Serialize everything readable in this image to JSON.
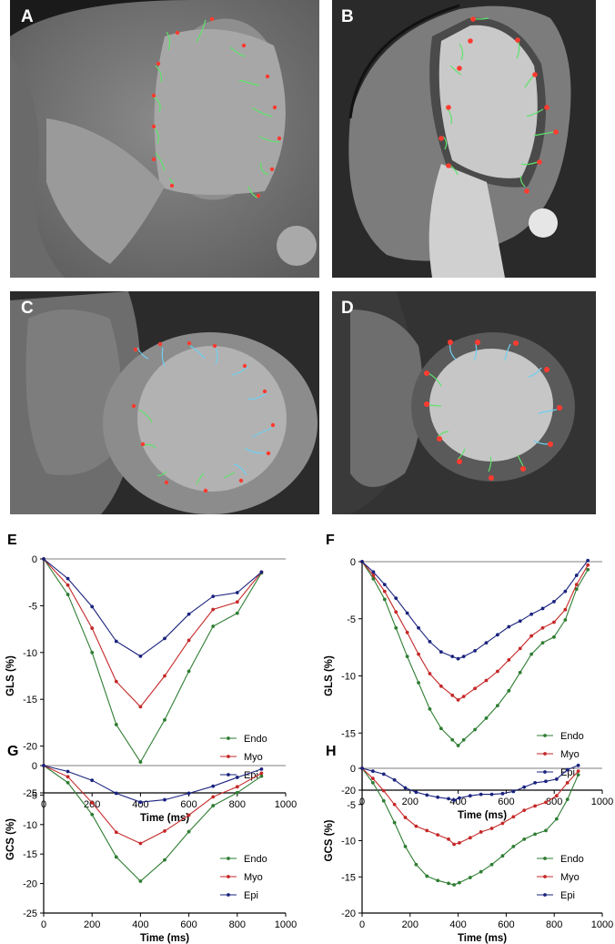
{
  "image_panels": [
    {
      "label": "A",
      "modality": "CT long-axis view"
    },
    {
      "label": "B",
      "modality": "CMR long-axis view"
    },
    {
      "label": "C",
      "modality": "CT short-axis view"
    },
    {
      "label": "D",
      "modality": "CMR short-axis view"
    }
  ],
  "colors": {
    "Endo": "#2e7d32",
    "Myo": "#c62828",
    "Epi": "#1a237e",
    "marker_red": "#ff3b30",
    "track_green": "#5ee36a",
    "track_cyan": "#6fd0f0"
  },
  "chart_data": [
    {
      "panel": "E",
      "type": "line",
      "xlabel": "Time (ms)",
      "ylabel": "GLS (%)",
      "xlim": [
        0,
        1000
      ],
      "ylim": [
        -25,
        0
      ],
      "xticks": [
        0,
        200,
        400,
        600,
        800,
        1000
      ],
      "yticks": [
        0,
        -5,
        -10,
        -15,
        -20,
        -25
      ],
      "legend": "bottom-right",
      "series": [
        {
          "name": "Endo",
          "x": [
            0,
            100,
            200,
            300,
            400,
            500,
            600,
            700,
            800,
            900
          ],
          "y": [
            0,
            -3.8,
            -10,
            -17.7,
            -21.7,
            -17.2,
            -12,
            -7.2,
            -5.8,
            -1.5
          ]
        },
        {
          "name": "Myo",
          "x": [
            0,
            100,
            200,
            300,
            400,
            500,
            600,
            700,
            800,
            900
          ],
          "y": [
            0,
            -2.8,
            -7.4,
            -13.1,
            -15.8,
            -12.5,
            -8.7,
            -5.4,
            -4.6,
            -1.4
          ]
        },
        {
          "name": "Epi",
          "x": [
            0,
            100,
            200,
            300,
            400,
            500,
            600,
            700,
            800,
            900
          ],
          "y": [
            0,
            -2.1,
            -5.1,
            -8.8,
            -10.4,
            -8.5,
            -5.9,
            -4,
            -3.6,
            -1.4
          ]
        }
      ]
    },
    {
      "panel": "F",
      "type": "line",
      "xlabel": "Time (ms)",
      "ylabel": "GLS (%)",
      "xlim": [
        0,
        1000
      ],
      "ylim": [
        -20,
        0
      ],
      "xticks": [
        0,
        200,
        400,
        600,
        800,
        1000
      ],
      "yticks": [
        0,
        -5,
        -10,
        -15,
        -20
      ],
      "legend": "bottom-right",
      "series": [
        {
          "name": "Endo",
          "x": [
            0,
            47,
            94,
            141,
            188,
            235,
            282,
            329,
            376,
            400,
            423,
            470,
            517,
            564,
            611,
            658,
            705,
            752,
            799,
            846,
            893,
            940
          ],
          "y": [
            0,
            -1.5,
            -3.3,
            -5.8,
            -8.3,
            -10.6,
            -12.9,
            -14.6,
            -15.6,
            -16.1,
            -15.6,
            -14.7,
            -13.7,
            -12.6,
            -11.3,
            -9.7,
            -8.1,
            -7.1,
            -6.6,
            -5.1,
            -2.4,
            -0.7
          ]
        },
        {
          "name": "Myo",
          "x": [
            0,
            47,
            94,
            141,
            188,
            235,
            282,
            329,
            376,
            400,
            423,
            470,
            517,
            564,
            611,
            658,
            705,
            752,
            799,
            846,
            893,
            940
          ],
          "y": [
            0,
            -1.2,
            -2.6,
            -4.4,
            -6.2,
            -8.1,
            -9.8,
            -10.9,
            -11.7,
            -12.1,
            -11.8,
            -11.1,
            -10.4,
            -9.6,
            -8.6,
            -7.6,
            -6.5,
            -5.8,
            -5.3,
            -4.2,
            -2,
            -0.3
          ]
        },
        {
          "name": "Epi",
          "x": [
            0,
            47,
            94,
            141,
            188,
            235,
            282,
            329,
            376,
            400,
            423,
            470,
            517,
            564,
            611,
            658,
            705,
            752,
            799,
            846,
            893,
            940
          ],
          "y": [
            0,
            -0.9,
            -2,
            -3.2,
            -4.5,
            -5.8,
            -7,
            -7.9,
            -8.3,
            -8.5,
            -8.3,
            -7.8,
            -7.1,
            -6.4,
            -5.7,
            -5.2,
            -4.6,
            -4.1,
            -3.5,
            -2.6,
            -1.2,
            0.1
          ]
        }
      ]
    },
    {
      "panel": "G",
      "type": "line",
      "xlabel": "Time (ms)",
      "ylabel": "GCS (%)",
      "xlim": [
        0,
        1000
      ],
      "ylim": [
        -25,
        0
      ],
      "xticks": [
        0,
        200,
        400,
        600,
        800,
        1000
      ],
      "yticks": [
        0,
        -5,
        -10,
        -15,
        -20,
        -25
      ],
      "legend": "bottom-right",
      "series": [
        {
          "name": "Endo",
          "x": [
            0,
            100,
            200,
            300,
            400,
            500,
            600,
            700,
            800,
            900
          ],
          "y": [
            0,
            -2.9,
            -8.3,
            -15.5,
            -19.6,
            -16,
            -11.2,
            -6.8,
            -4.6,
            -1.8
          ]
        },
        {
          "name": "Myo",
          "x": [
            0,
            100,
            200,
            300,
            400,
            500,
            600,
            700,
            800,
            900
          ],
          "y": [
            0,
            -1.9,
            -6.3,
            -11.3,
            -13.2,
            -11.1,
            -8.4,
            -5.3,
            -3.6,
            -1.3
          ]
        },
        {
          "name": "Epi",
          "x": [
            0,
            100,
            200,
            300,
            400,
            500,
            600,
            700,
            800,
            900
          ],
          "y": [
            0,
            -1,
            -2.5,
            -4.7,
            -6.2,
            -5.8,
            -4.7,
            -3.5,
            -2,
            -0.6
          ]
        }
      ]
    },
    {
      "panel": "H",
      "type": "line",
      "xlabel": "Time (ms)",
      "ylabel": "GCS (%)",
      "xlim": [
        0,
        1000
      ],
      "ylim": [
        -20,
        0
      ],
      "xticks": [
        0,
        200,
        400,
        600,
        800,
        1000
      ],
      "yticks": [
        0,
        -5,
        -10,
        -15,
        -20
      ],
      "legend": "bottom-right",
      "series": [
        {
          "name": "Endo",
          "x": [
            0,
            45,
            90,
            135,
            180,
            225,
            270,
            315,
            360,
            383,
            405,
            450,
            495,
            540,
            585,
            630,
            675,
            720,
            765,
            810,
            855,
            900
          ],
          "y": [
            0,
            -2,
            -4.5,
            -7.5,
            -10.8,
            -13.3,
            -14.9,
            -15.5,
            -15.9,
            -16.1,
            -15.8,
            -15.1,
            -14.3,
            -13.3,
            -12.1,
            -10.8,
            -9.8,
            -9.1,
            -8.6,
            -7,
            -4.3,
            -0.9
          ]
        },
        {
          "name": "Myo",
          "x": [
            0,
            45,
            90,
            135,
            180,
            225,
            270,
            315,
            360,
            383,
            405,
            450,
            495,
            540,
            585,
            630,
            675,
            720,
            765,
            810,
            855,
            900
          ],
          "y": [
            0,
            -1.4,
            -3.1,
            -5,
            -6.8,
            -8,
            -8.6,
            -9.2,
            -9.8,
            -10.5,
            -10.3,
            -9.6,
            -8.8,
            -8.3,
            -7.6,
            -6.7,
            -5.8,
            -5.2,
            -4.7,
            -3.8,
            -2,
            -0.4
          ]
        },
        {
          "name": "Epi",
          "x": [
            0,
            45,
            90,
            135,
            180,
            225,
            270,
            315,
            360,
            383,
            405,
            450,
            495,
            540,
            585,
            630,
            675,
            720,
            765,
            810,
            855,
            900
          ],
          "y": [
            0,
            -0.4,
            -0.8,
            -1.6,
            -2.7,
            -3.3,
            -3.7,
            -4,
            -4.2,
            -4.4,
            -4.1,
            -3.8,
            -3.6,
            -3.6,
            -3.5,
            -3.2,
            -2.6,
            -2,
            -1.8,
            -1.5,
            -0.2,
            0.4
          ]
        }
      ]
    }
  ]
}
